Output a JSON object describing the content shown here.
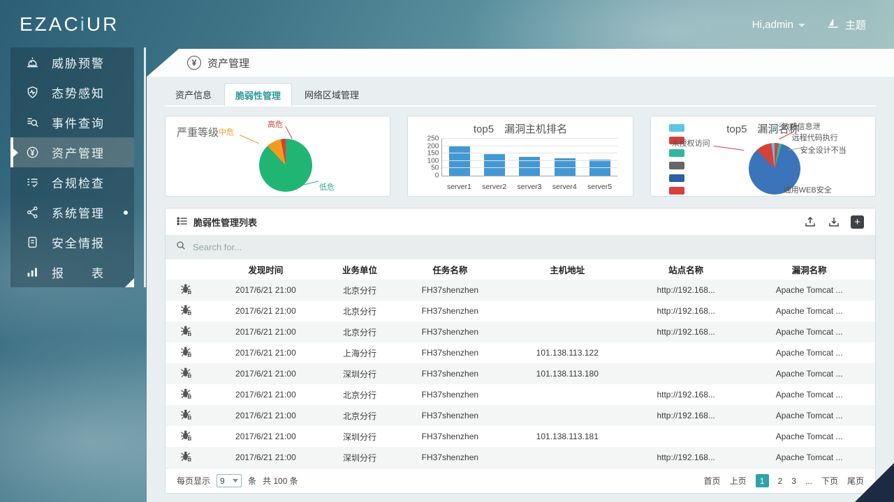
{
  "topbar": {
    "brand_left": "EZAC",
    "brand_accent": "i",
    "brand_right": "UR",
    "user": "Hi,admin",
    "theme_label": "主题"
  },
  "sidebar": {
    "items": [
      {
        "label": "威胁预警",
        "icon": "siren-icon"
      },
      {
        "label": "态势感知",
        "icon": "shield-pulse-icon"
      },
      {
        "label": "事件查询",
        "icon": "event-search-icon"
      },
      {
        "label": "资产管理",
        "icon": "asset-yen-icon"
      },
      {
        "label": "合规检查",
        "icon": "checklist-icon"
      },
      {
        "label": "系统管理",
        "icon": "share-nodes-icon"
      },
      {
        "label": "安全情报",
        "icon": "intel-doc-icon"
      },
      {
        "label": "报　　表",
        "icon": "bar-chart-icon"
      }
    ],
    "active_index": 3,
    "dot_index": 5
  },
  "page_header": {
    "title": "资产管理",
    "icon": "yen-circle-icon"
  },
  "tabs": {
    "items": [
      "资产信息",
      "脆弱性管理",
      "网络区域管理"
    ],
    "active_index": 1
  },
  "chart_data": [
    {
      "type": "pie",
      "title": "严重等级",
      "start_deg": 0,
      "slices": [
        {
          "label": "低危",
          "value": 88,
          "color": "#21b573",
          "label_color": "#2fae92"
        },
        {
          "label": "中危",
          "value": 9,
          "color": "#f29b1d",
          "label_color": "#f29b1d"
        },
        {
          "label": "高危",
          "value": 3,
          "color": "#d8403c",
          "label_color": "#d8403c"
        }
      ]
    },
    {
      "type": "bar",
      "title": "top5　漏洞主机排名",
      "categories": [
        "server1",
        "server2",
        "server3",
        "server4",
        "server5"
      ],
      "values": [
        203,
        148,
        128,
        118,
        110
      ],
      "ylim": [
        0,
        250
      ],
      "yticks": [
        0,
        50,
        100,
        150,
        200,
        250
      ],
      "bar_color": "#4398d4",
      "xlabel": "",
      "ylabel": ""
    },
    {
      "type": "pie",
      "title": "top5　漏洞名称",
      "start_deg": 353,
      "slices": [
        {
          "label": "敏感信息泄",
          "value": 2,
          "color": "#5ec5e4"
        },
        {
          "label": "远程代码执行",
          "value": 2.5,
          "color": "#d8403c"
        },
        {
          "label": "安全设计不当",
          "value": 2,
          "color": "#2eb8a0",
          "line_color": "#999999"
        },
        {
          "label": "通用WEB安全",
          "value": 83.5,
          "color": "#3b74b8"
        },
        {
          "label": "未授权访问",
          "value": 10,
          "color": "#d8403c"
        }
      ],
      "legend_colors": [
        "#5ec5e4",
        "#d8403c",
        "#2eb8a0",
        "#666666",
        "#2d5fa8",
        "#d8403c"
      ]
    }
  ],
  "list": {
    "title": "脆弱性管理列表",
    "search_placeholder": "Search for...",
    "columns": [
      "发现时间",
      "业务单位",
      "任务名称",
      "主机地址",
      "站点名称",
      "漏洞名称"
    ],
    "rows": [
      {
        "time": "2017/6/21  21:00",
        "unit": "北京分行",
        "task": "FH37shenzhen",
        "host": "",
        "site": "http://192.168...",
        "vuln": "Apache Tomcat ..."
      },
      {
        "time": "2017/6/21  21:00",
        "unit": "北京分行",
        "task": "FH37shenzhen",
        "host": "",
        "site": "http://192.168...",
        "vuln": "Apache Tomcat ..."
      },
      {
        "time": "2017/6/21  21:00",
        "unit": "北京分行",
        "task": "FH37shenzhen",
        "host": "",
        "site": "http://192.168...",
        "vuln": "Apache Tomcat ..."
      },
      {
        "time": "2017/6/21  21:00",
        "unit": "上海分行",
        "task": "FH37shenzhen",
        "host": "101.138.113.122",
        "site": "",
        "vuln": "Apache Tomcat ..."
      },
      {
        "time": "2017/6/21  21:00",
        "unit": "深圳分行",
        "task": "FH37shenzhen",
        "host": "101.138.113.180",
        "site": "",
        "vuln": "Apache Tomcat ..."
      },
      {
        "time": "2017/6/21  21:00",
        "unit": "北京分行",
        "task": "FH37shenzhen",
        "host": "",
        "site": "http://192.168...",
        "vuln": "Apache Tomcat ..."
      },
      {
        "time": "2017/6/21  21:00",
        "unit": "北京分行",
        "task": "FH37shenzhen",
        "host": "",
        "site": "http://192.168...",
        "vuln": "Apache Tomcat ..."
      },
      {
        "time": "2017/6/21  21:00",
        "unit": "深圳分行",
        "task": "FH37shenzhen",
        "host": "101.138.113.181",
        "site": "",
        "vuln": "Apache Tomcat ..."
      },
      {
        "time": "2017/6/21  21:00",
        "unit": "深圳分行",
        "task": "FH37shenzhen",
        "host": "",
        "site": "http://192.168...",
        "vuln": "Apache Tomcat ..."
      }
    ],
    "pagination": {
      "per_page_label": "每页显示",
      "per_page_value": "9",
      "unit_label": "条",
      "total_label": "共 100 条",
      "pages": [
        "首页",
        "上页",
        "1",
        "2",
        "3",
        "...",
        "下页",
        "尾页"
      ],
      "active_page": "1"
    }
  }
}
